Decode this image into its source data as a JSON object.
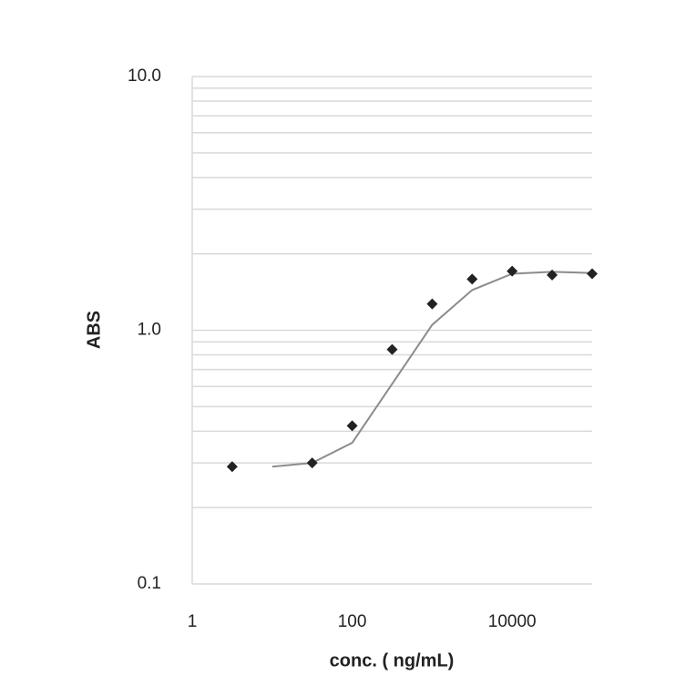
{
  "chart_data": {
    "type": "scatter",
    "xlabel": "conc. ( ng/mL)",
    "ylabel": "ABS",
    "x": [
      3.16,
      31.6,
      100,
      316,
      1000,
      3160,
      10000,
      31600,
      100000
    ],
    "values": [
      0.29,
      0.3,
      0.42,
      0.84,
      1.27,
      1.59,
      1.71,
      1.65,
      1.67
    ],
    "color": "#222222",
    "fit_x": [
      10,
      31.6,
      100,
      1000,
      3160,
      10000,
      31600,
      100000
    ],
    "fit_values": [
      0.29,
      0.3,
      0.36,
      1.05,
      1.44,
      1.67,
      1.7,
      1.68
    ],
    "fit_color": "#8c8c8c",
    "xlim": [
      1,
      100000
    ],
    "ylim": [
      0.1,
      10
    ],
    "xticks": [
      1,
      100,
      10000
    ],
    "yticks": [
      0.1,
      {
        "value": 1,
        "label": "1.0"
      },
      {
        "value": 10,
        "label": "10.0"
      }
    ],
    "yminor": [
      0.2,
      0.3,
      0.4,
      0.5,
      0.6,
      0.7,
      0.8,
      0.9,
      2,
      3,
      4,
      5,
      6,
      7,
      8,
      9
    ],
    "xscale": "log",
    "yscale": "log",
    "grid": true,
    "grid_color": "#d9d9d9"
  }
}
